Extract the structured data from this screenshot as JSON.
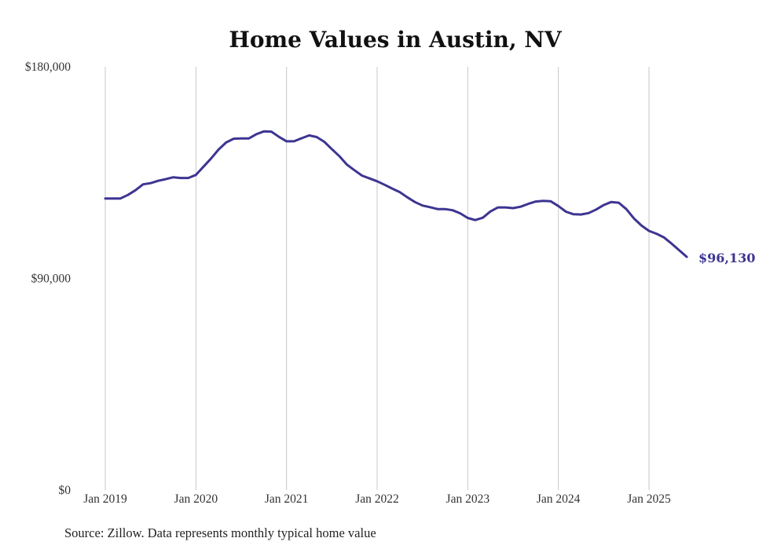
{
  "chart_data": {
    "type": "line",
    "title": "Home Values in Austin, NV",
    "xlabel": "",
    "ylabel": "",
    "ylim": [
      0,
      180000
    ],
    "y_ticks": [
      0,
      90000,
      180000
    ],
    "y_tick_labels": [
      "$0",
      "$90,000",
      "$180,000"
    ],
    "x_ticks": [
      "2019-01",
      "2020-01",
      "2021-01",
      "2022-01",
      "2023-01",
      "2024-01",
      "2025-01"
    ],
    "x_tick_labels": [
      "Jan 2019",
      "Jan 2020",
      "Jan 2021",
      "Jan 2022",
      "Jan 2023",
      "Jan 2024",
      "Jan 2025"
    ],
    "grid": "vertical",
    "line_color": "#3d3591",
    "end_label": "$96,130",
    "source_note": "Source: Zillow. Data represents monthly typical home value",
    "series": [
      {
        "x": [
          "2019-01",
          "2019-02",
          "2019-03",
          "2019-04",
          "2019-05",
          "2019-06",
          "2019-07",
          "2019-08",
          "2019-09",
          "2019-10",
          "2019-11",
          "2019-12",
          "2020-01",
          "2020-02",
          "2020-03",
          "2020-04",
          "2020-05",
          "2020-06",
          "2020-07",
          "2020-08",
          "2020-09",
          "2020-10",
          "2020-11",
          "2020-12",
          "2021-01",
          "2021-02",
          "2021-03",
          "2021-04",
          "2021-05",
          "2021-06",
          "2021-07",
          "2021-08",
          "2021-09",
          "2021-10",
          "2021-11",
          "2021-12",
          "2022-01",
          "2022-02",
          "2022-03",
          "2022-04",
          "2022-05",
          "2022-06",
          "2022-07",
          "2022-08",
          "2022-09",
          "2022-10",
          "2022-11",
          "2022-12",
          "2023-01",
          "2023-02",
          "2023-03",
          "2023-04",
          "2023-05",
          "2023-06",
          "2023-07",
          "2023-08",
          "2023-09",
          "2023-10",
          "2023-11",
          "2023-12",
          "2024-01",
          "2024-02",
          "2024-03",
          "2024-04",
          "2024-05",
          "2024-06",
          "2024-07",
          "2024-08",
          "2024-09",
          "2024-10",
          "2024-11",
          "2024-12",
          "2025-01",
          "2025-02",
          "2025-03",
          "2025-04",
          "2025-05",
          "2025-06"
        ],
        "y": [
          124000,
          124000,
          124000,
          125500,
          127500,
          130000,
          130500,
          131500,
          132200,
          133000,
          132700,
          132700,
          134000,
          137500,
          141000,
          144800,
          147800,
          149400,
          149500,
          149500,
          151300,
          152500,
          152400,
          150200,
          148300,
          148300,
          149600,
          150800,
          150100,
          148100,
          145000,
          142000,
          138400,
          136000,
          133700,
          132500,
          131300,
          129800,
          128200,
          126700,
          124500,
          122500,
          121000,
          120300,
          119500,
          119500,
          119000,
          117700,
          115700,
          114800,
          115800,
          118500,
          120200,
          120200,
          119900,
          120500,
          121700,
          122700,
          123000,
          122800,
          120800,
          118400,
          117300,
          117200,
          117800,
          119300,
          121200,
          122500,
          122200,
          119500,
          115500,
          112500,
          110200,
          109000,
          107400,
          104800,
          102000,
          99200
        ]
      }
    ]
  }
}
